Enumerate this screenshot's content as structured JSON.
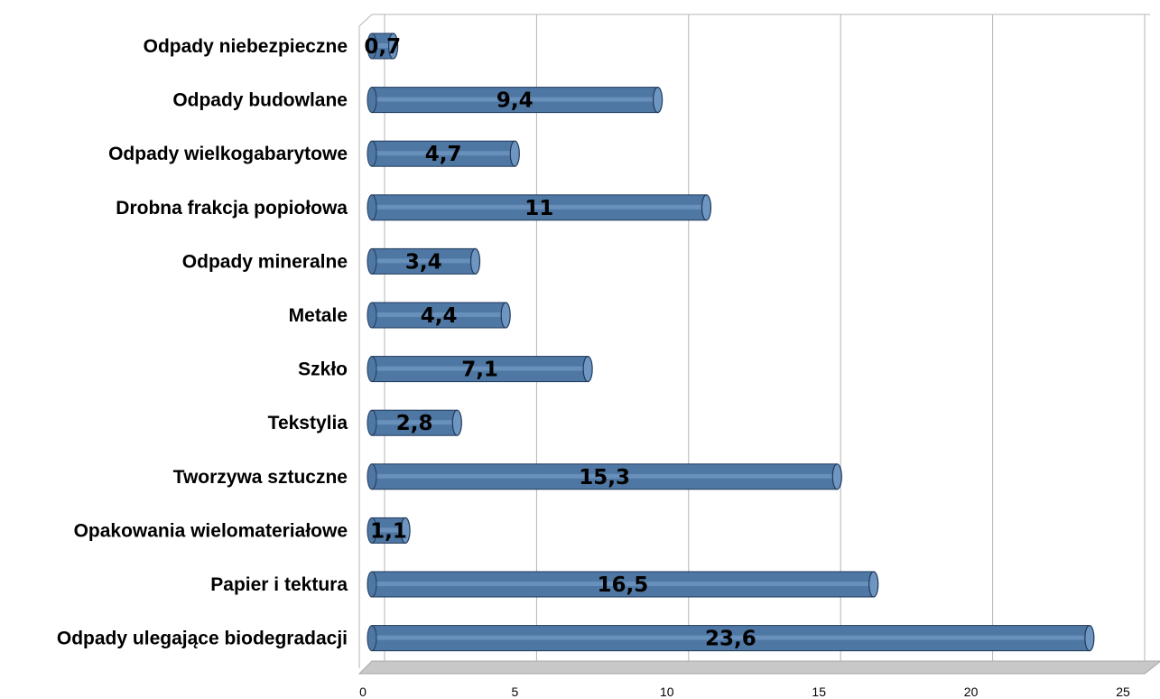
{
  "chart_data": {
    "type": "bar",
    "orientation": "horizontal",
    "style": "3d-cylinder",
    "categories": [
      "Odpady niebezpieczne",
      "Odpady budowlane",
      "Odpady wielkogabarytowe",
      "Drobna frakcja popiołowa",
      "Odpady mineralne",
      "Metale",
      "Szkło",
      "Tekstylia",
      "Tworzywa sztuczne",
      "Opakowania wielomateriałowe",
      "Papier i tektura",
      "Odpady ulegające biodegradacji"
    ],
    "values": [
      0.7,
      9.4,
      4.7,
      11,
      3.4,
      4.4,
      7.1,
      2.8,
      15.3,
      1.1,
      16.5,
      23.6
    ],
    "data_labels": [
      "0,7",
      "9,4",
      "4,7",
      "11",
      "3,4",
      "4,4",
      "7,1",
      "2,8",
      "15,3",
      "1,1",
      "16,5",
      "23,6"
    ],
    "xlim": [
      0,
      25
    ],
    "x_ticks": [
      "0",
      "5",
      "10",
      "15",
      "20",
      "25"
    ],
    "grid": true,
    "legend": "none",
    "colors": {
      "bar_fill": "#4f77a3",
      "bar_highlight": "#6f95c1",
      "bar_edge": "#1f3a5c",
      "grid": "#b5b5b5",
      "floor": "#c8c8c8"
    }
  }
}
